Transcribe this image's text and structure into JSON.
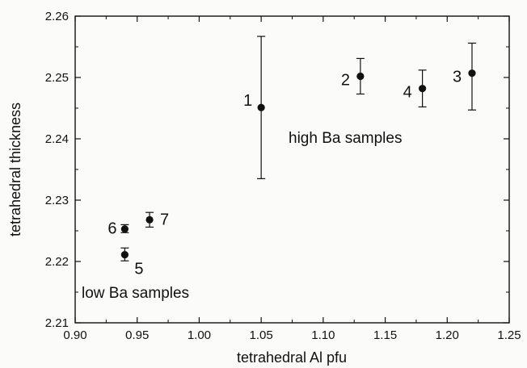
{
  "chart_data": {
    "type": "scatter",
    "title": "",
    "xlabel": "tetrahedral Al pfu",
    "ylabel": "tetrahedral thickness",
    "xlim": [
      0.9,
      1.25
    ],
    "ylim": [
      2.21,
      2.26
    ],
    "xticks": [
      0.9,
      0.95,
      1.0,
      1.05,
      1.1,
      1.15,
      1.2,
      1.25
    ],
    "xtick_labels": [
      "0.90",
      "0.95",
      "1.00",
      "1.05",
      "1.10",
      "1.15",
      "1.20",
      "1.25"
    ],
    "yticks": [
      2.21,
      2.22,
      2.23,
      2.24,
      2.25,
      2.26
    ],
    "ytick_labels": [
      "2.21",
      "2.22",
      "2.23",
      "2.24",
      "2.25",
      "2.26"
    ],
    "grid": false,
    "legend": "none",
    "error_bars": true,
    "points": [
      {
        "label": "1",
        "x": 1.05,
        "y": 2.2451,
        "err_low": 2.2335,
        "err_high": 2.2567
      },
      {
        "label": "2",
        "x": 1.13,
        "y": 2.2502,
        "err_low": 2.2473,
        "err_high": 2.2531
      },
      {
        "label": "3",
        "x": 1.22,
        "y": 2.2507,
        "err_low": 2.2447,
        "err_high": 2.2556
      },
      {
        "label": "4",
        "x": 1.18,
        "y": 2.2482,
        "err_low": 2.2452,
        "err_high": 2.2512
      },
      {
        "label": "5",
        "x": 0.94,
        "y": 2.2211,
        "err_low": 2.2201,
        "err_high": 2.2222
      },
      {
        "label": "6",
        "x": 0.94,
        "y": 2.2253,
        "err_low": 2.2247,
        "err_high": 2.226
      },
      {
        "label": "7",
        "x": 0.96,
        "y": 2.2268,
        "err_low": 2.2256,
        "err_high": 2.228
      }
    ],
    "annotations": [
      "high Ba samples",
      "low Ba samples"
    ]
  }
}
